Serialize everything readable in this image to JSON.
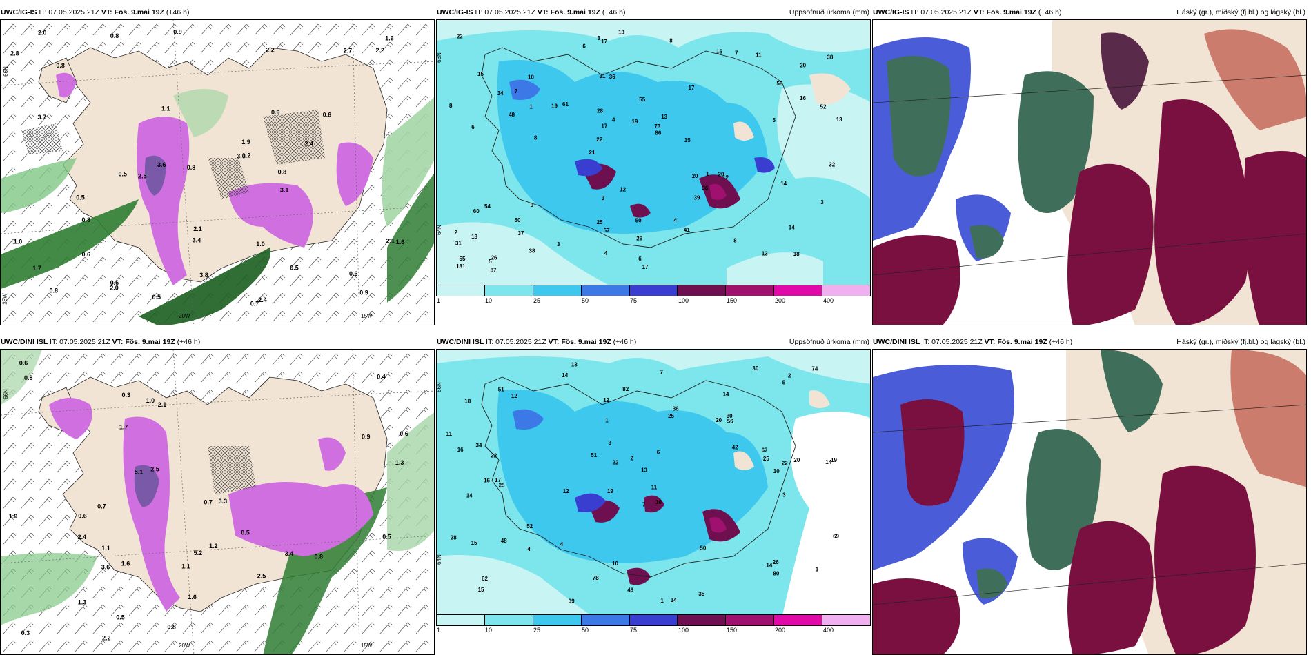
{
  "panels": [
    {
      "id": "p1",
      "model": "UWC/IG-IS",
      "it": "IT: 07.05.2025 21Z",
      "vt": "VT: Fös. 9.mai 19Z",
      "lead": "(+46 h)",
      "right": ""
    },
    {
      "id": "p2",
      "model": "UWC/IG-IS",
      "it": "IT: 07.05.2025 21Z",
      "vt": "VT: Fös. 9.mai 19Z",
      "lead": "(+46 h)",
      "right": "Uppsöfnuð úrkoma (mm)"
    },
    {
      "id": "p3",
      "model": "UWC/IG-IS",
      "it": "IT: 07.05.2025 21Z",
      "vt": "VT: Fös. 9.mai 19Z",
      "lead": "(+46 h)",
      "right": "Háský (gr.), miðský (fj.bl.) og lágský (bl.)"
    },
    {
      "id": "p4",
      "model": "UWC/DINI ISL",
      "it": "IT: 07.05.2025 21Z",
      "vt": "VT: Fös. 9.mai 19Z",
      "lead": "(+46 h)",
      "right": ""
    },
    {
      "id": "p5",
      "model": "UWC/DINI ISL",
      "it": "IT: 07.05.2025 21Z",
      "vt": "VT: Fös. 9.mai 19Z",
      "lead": "(+46 h)",
      "right": "Uppsöfnuð úrkoma (mm)"
    },
    {
      "id": "p6",
      "model": "UWC/DINI ISL",
      "it": "IT: 07.05.2025 21Z",
      "vt": "VT: Fös. 9.mai 19Z",
      "lead": "(+46 h)",
      "right": "Háský (gr.), miðský (fj.bl.) og lágský (bl.)"
    }
  ],
  "colorbar": {
    "ticks": [
      "1",
      "10",
      "25",
      "50",
      "75",
      "100",
      "150",
      "200",
      "400"
    ],
    "colors": [
      "#c8f4f4",
      "#7de6ec",
      "#3fc8ee",
      "#3c78e6",
      "#3a3ed0",
      "#6e1050",
      "#a0106e",
      "#e00aa8",
      "#f0b0f0"
    ]
  },
  "lat_labels": {
    "n66": "66N",
    "n65": "65N",
    "n64": "64N",
    "w25": "25W",
    "w20": "20W",
    "w15": "15W"
  },
  "precip_values_top": [
    "18",
    "6",
    "20",
    "21",
    "17",
    "26",
    "31",
    "55",
    "54",
    "61",
    "31",
    "37",
    "36",
    "13",
    "12",
    "15",
    "17",
    "13",
    "20",
    "16",
    "22",
    "25",
    "17",
    "10",
    "15",
    "9",
    "13",
    "14",
    "20",
    "17",
    "19",
    "48",
    "39",
    "38",
    "52",
    "73",
    "55",
    "57",
    "86",
    "60",
    "58",
    "38",
    "36",
    "41",
    "50",
    "87",
    "181",
    "50",
    "11",
    "13",
    "8",
    "8",
    "7",
    "7",
    "5",
    "8",
    "6",
    "4",
    "3",
    "3",
    "3",
    "1",
    "1",
    "2",
    "22",
    "34",
    "32",
    "28",
    "26",
    "19",
    "18",
    "15",
    "14",
    "4",
    "5",
    "12",
    "8",
    "6",
    "4",
    "3"
  ],
  "precip_values_bottom": [
    "13",
    "14",
    "14",
    "19",
    "10",
    "17",
    "18",
    "20",
    "14",
    "25",
    "13",
    "15",
    "14",
    "12",
    "1",
    "14",
    "10",
    "30",
    "42",
    "52",
    "22",
    "16",
    "19",
    "20",
    "28",
    "34",
    "22",
    "25",
    "26",
    "15",
    "14",
    "36",
    "48",
    "51",
    "50",
    "69",
    "67",
    "78",
    "74",
    "82",
    "62",
    "39",
    "35",
    "51",
    "43",
    "56",
    "80",
    "30",
    "11",
    "11",
    "12",
    "10",
    "6",
    "5",
    "7",
    "4",
    "3",
    "2",
    "2",
    "1",
    "1",
    "3",
    "12",
    "4",
    "7",
    "16",
    "22",
    "25"
  ],
  "temp_values_top": [
    "0.5",
    "0.7",
    "0.6",
    "0.5",
    "0.8",
    "0.8",
    "0.5",
    "0.9",
    "0.9",
    "1.1",
    "2.7",
    "3.8",
    "3.6",
    "3.4",
    "2.2",
    "3.0",
    "3.7",
    "2.0",
    "2.5",
    "2.8",
    "1.0",
    "1.6",
    "1.9",
    "0.8",
    "0.6",
    "0.5",
    "1.0",
    "0.8",
    "2.0",
    "3.1",
    "0.8",
    "2.4",
    "2.1",
    "2.2",
    "0.6",
    "0.8",
    "2.1",
    "1.7",
    "0.9",
    "0.6",
    "1.2",
    "2.4",
    "1.6"
  ],
  "temp_values_bottom": [
    "0.8",
    "0.6",
    "1.9",
    "0.4",
    "0.6",
    "2.5",
    "2.1",
    "1.6",
    "0.3",
    "3.4",
    "3.6",
    "3.3",
    "2.2",
    "2.4",
    "5.2",
    "5.1",
    "1.1",
    "1.3",
    "1.7",
    "2.5",
    "1.3",
    "1.6",
    "0.5",
    "0.7",
    "0.6",
    "1.2",
    "1.1",
    "0.8",
    "0.8",
    "1.0",
    "0.5",
    "0.3",
    "0.9",
    "0.5",
    "0.7"
  ]
}
